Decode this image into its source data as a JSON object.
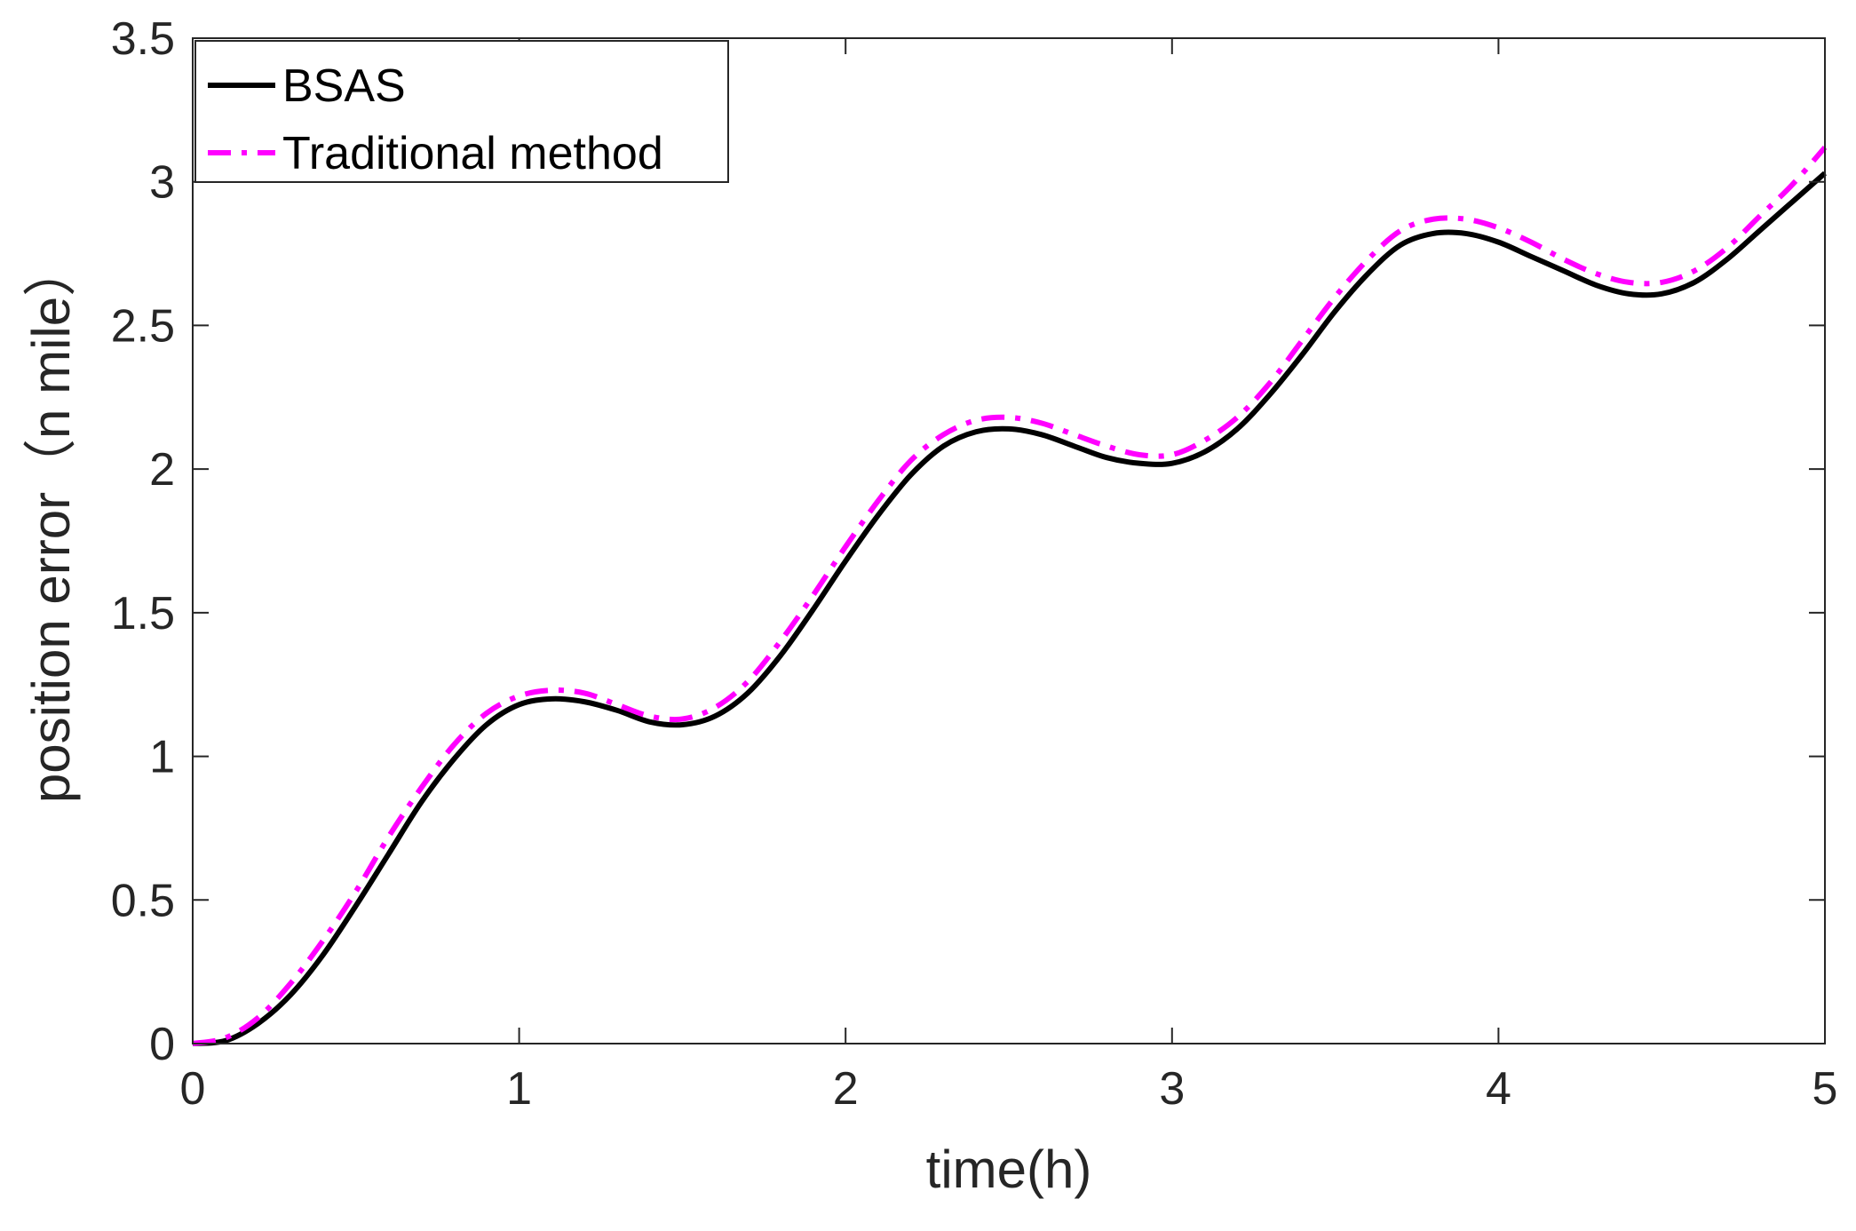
{
  "chart_data": {
    "type": "line",
    "title": "",
    "xlabel": "time(h)",
    "ylabel": "position error（n mile）",
    "xlim": [
      0,
      5
    ],
    "ylim": [
      0,
      3.5
    ],
    "xticks": [
      0,
      1,
      2,
      3,
      4,
      5
    ],
    "xtick_labels": [
      "0",
      "1",
      "2",
      "3",
      "4",
      "5"
    ],
    "yticks": [
      0,
      0.5,
      1,
      1.5,
      2,
      2.5,
      3,
      3.5
    ],
    "ytick_labels": [
      "0",
      "0.5",
      "1",
      "1.5",
      "2",
      "2.5",
      "3",
      "3.5"
    ],
    "grid": false,
    "legend": "top-left",
    "x": [
      0,
      0.1,
      0.2,
      0.3,
      0.4,
      0.5,
      0.6,
      0.7,
      0.8,
      0.9,
      1.0,
      1.1,
      1.2,
      1.3,
      1.4,
      1.5,
      1.6,
      1.7,
      1.8,
      1.9,
      2.0,
      2.1,
      2.2,
      2.3,
      2.4,
      2.5,
      2.6,
      2.7,
      2.8,
      2.9,
      3.0,
      3.1,
      3.2,
      3.3,
      3.4,
      3.5,
      3.6,
      3.7,
      3.8,
      3.9,
      4.0,
      4.1,
      4.2,
      4.3,
      4.4,
      4.5,
      4.6,
      4.7,
      4.8,
      4.9,
      5.0
    ],
    "series": [
      {
        "name": "BSAS",
        "color": "#000000",
        "style": "solid",
        "values": [
          0,
          0.01,
          0.07,
          0.17,
          0.31,
          0.48,
          0.66,
          0.84,
          0.99,
          1.11,
          1.18,
          1.2,
          1.19,
          1.16,
          1.12,
          1.11,
          1.14,
          1.22,
          1.35,
          1.51,
          1.68,
          1.84,
          1.98,
          2.08,
          2.13,
          2.14,
          2.12,
          2.08,
          2.04,
          2.02,
          2.02,
          2.06,
          2.14,
          2.26,
          2.4,
          2.55,
          2.68,
          2.78,
          2.82,
          2.82,
          2.79,
          2.74,
          2.69,
          2.64,
          2.61,
          2.61,
          2.65,
          2.73,
          2.83,
          2.93,
          3.03
        ]
      },
      {
        "name": "Traditional method",
        "color": "#ff00ff",
        "style": "dashdot",
        "values": [
          0,
          0.02,
          0.09,
          0.21,
          0.36,
          0.53,
          0.72,
          0.89,
          1.04,
          1.15,
          1.21,
          1.23,
          1.22,
          1.18,
          1.14,
          1.13,
          1.17,
          1.26,
          1.4,
          1.56,
          1.73,
          1.89,
          2.03,
          2.12,
          2.17,
          2.18,
          2.16,
          2.12,
          2.08,
          2.05,
          2.05,
          2.1,
          2.18,
          2.3,
          2.45,
          2.6,
          2.73,
          2.83,
          2.87,
          2.87,
          2.84,
          2.79,
          2.73,
          2.68,
          2.65,
          2.65,
          2.69,
          2.77,
          2.88,
          2.99,
          3.12
        ]
      }
    ]
  }
}
